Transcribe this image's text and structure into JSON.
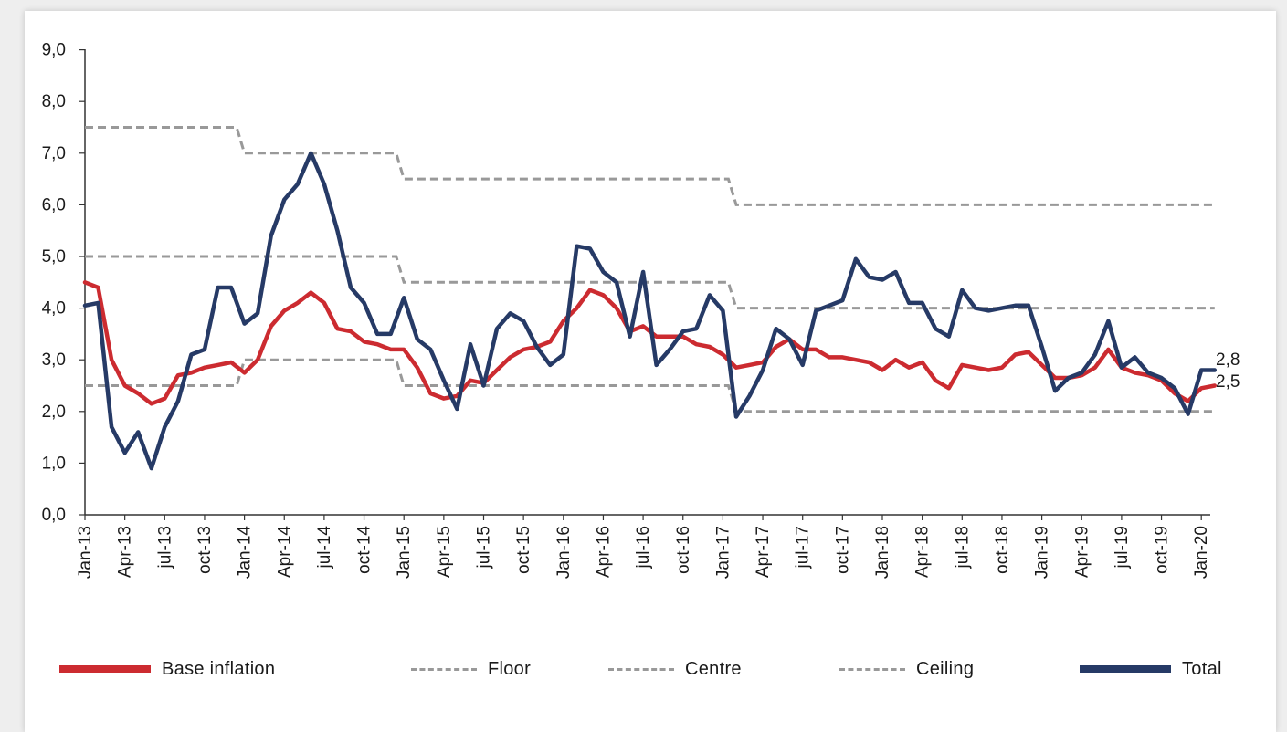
{
  "chart_data": {
    "type": "line",
    "xlabel": "",
    "ylabel": "",
    "ylim": [
      0,
      9
    ],
    "yticks": [
      "0,0",
      "1,0",
      "2,0",
      "3,0",
      "4,0",
      "5,0",
      "6,0",
      "7,0",
      "8,0",
      "9,0"
    ],
    "x_tick_labels": [
      "Jan-13",
      "Apr-13",
      "jul-13",
      "oct-13",
      "Jan-14",
      "Apr-14",
      "jul-14",
      "oct-14",
      "Jan-15",
      "Apr-15",
      "jul-15",
      "oct-15",
      "Jan-16",
      "Apr-16",
      "jul-16",
      "oct-16",
      "Jan-17",
      "Apr-17",
      "jul-17",
      "oct-17",
      "Jan-18",
      "Apr-18",
      "jul-18",
      "oct-18",
      "Jan-19",
      "Apr-19",
      "jul-19",
      "oct-19",
      "Jan-20"
    ],
    "start_month": "Jan-13",
    "end_labels": {
      "total": "2,8",
      "base": "2,5"
    },
    "series": [
      {
        "name": "Base inflation",
        "color": "#cc2b30",
        "style": "solid",
        "values": [
          4.5,
          4.4,
          3.0,
          2.5,
          2.35,
          2.15,
          2.25,
          2.7,
          2.75,
          2.85,
          2.9,
          2.95,
          2.75,
          3.0,
          3.65,
          3.95,
          4.1,
          4.3,
          4.1,
          3.6,
          3.55,
          3.35,
          3.3,
          3.2,
          3.2,
          2.85,
          2.35,
          2.25,
          2.3,
          2.6,
          2.55,
          2.8,
          3.05,
          3.2,
          3.25,
          3.35,
          3.75,
          4.0,
          4.35,
          4.25,
          4.0,
          3.55,
          3.65,
          3.45,
          3.45,
          3.45,
          3.3,
          3.25,
          3.1,
          2.85,
          2.9,
          2.95,
          3.25,
          3.4,
          3.2,
          3.2,
          3.05,
          3.05,
          3.0,
          2.95,
          2.8,
          3.0,
          2.85,
          2.95,
          2.6,
          2.45,
          2.9,
          2.85,
          2.8,
          2.85,
          3.1,
          3.15,
          2.9,
          2.65,
          2.65,
          2.7,
          2.85,
          3.2,
          2.85,
          2.75,
          2.7,
          2.6,
          2.35,
          2.2,
          2.45,
          2.5
        ]
      },
      {
        "name": "Total",
        "color": "#263a66",
        "style": "solid",
        "values": [
          4.05,
          4.1,
          1.7,
          1.2,
          1.6,
          0.9,
          1.7,
          2.2,
          3.1,
          3.2,
          4.4,
          4.4,
          3.7,
          3.9,
          5.4,
          6.1,
          6.4,
          7.0,
          6.4,
          5.5,
          4.4,
          4.1,
          3.5,
          3.5,
          4.2,
          3.4,
          3.2,
          2.6,
          2.05,
          3.3,
          2.5,
          3.6,
          3.9,
          3.75,
          3.25,
          2.9,
          3.1,
          5.2,
          5.15,
          4.7,
          4.5,
          3.45,
          4.7,
          2.9,
          3.2,
          3.55,
          3.6,
          4.25,
          3.95,
          1.9,
          2.3,
          2.8,
          3.6,
          3.4,
          2.9,
          3.95,
          4.05,
          4.15,
          4.95,
          4.6,
          4.55,
          4.7,
          4.1,
          4.1,
          3.6,
          3.45,
          4.35,
          4.0,
          3.95,
          4.0,
          4.05,
          4.05,
          3.25,
          2.4,
          2.65,
          2.75,
          3.1,
          3.75,
          2.85,
          3.05,
          2.75,
          2.65,
          2.45,
          1.95,
          2.8,
          2.8
        ]
      },
      {
        "name": "Floor",
        "color": "#999999",
        "style": "dashed",
        "steps": [
          [
            0,
            2.5
          ],
          [
            12,
            3.0
          ],
          [
            24,
            2.5
          ],
          [
            49,
            2.0
          ],
          [
            85,
            2.0
          ]
        ]
      },
      {
        "name": "Centre",
        "color": "#999999",
        "style": "dashed",
        "steps": [
          [
            0,
            5.0
          ],
          [
            24,
            4.5
          ],
          [
            49,
            4.0
          ],
          [
            85,
            4.0
          ]
        ]
      },
      {
        "name": "Ceiling",
        "color": "#999999",
        "style": "dashed",
        "steps": [
          [
            0,
            7.5
          ],
          [
            12,
            7.0
          ],
          [
            24,
            6.5
          ],
          [
            49,
            6.0
          ],
          [
            85,
            6.0
          ]
        ]
      }
    ],
    "legend": [
      {
        "key": "base",
        "label": "Base inflation",
        "color": "#cc2b30",
        "style": "solid"
      },
      {
        "key": "floor",
        "label": "Floor",
        "color": "#999999",
        "style": "dashed"
      },
      {
        "key": "centre",
        "label": "Centre",
        "color": "#999999",
        "style": "dashed"
      },
      {
        "key": "ceiling",
        "label": "Ceiling",
        "color": "#999999",
        "style": "dashed"
      },
      {
        "key": "total",
        "label": "Total",
        "color": "#263a66",
        "style": "solid"
      }
    ]
  }
}
